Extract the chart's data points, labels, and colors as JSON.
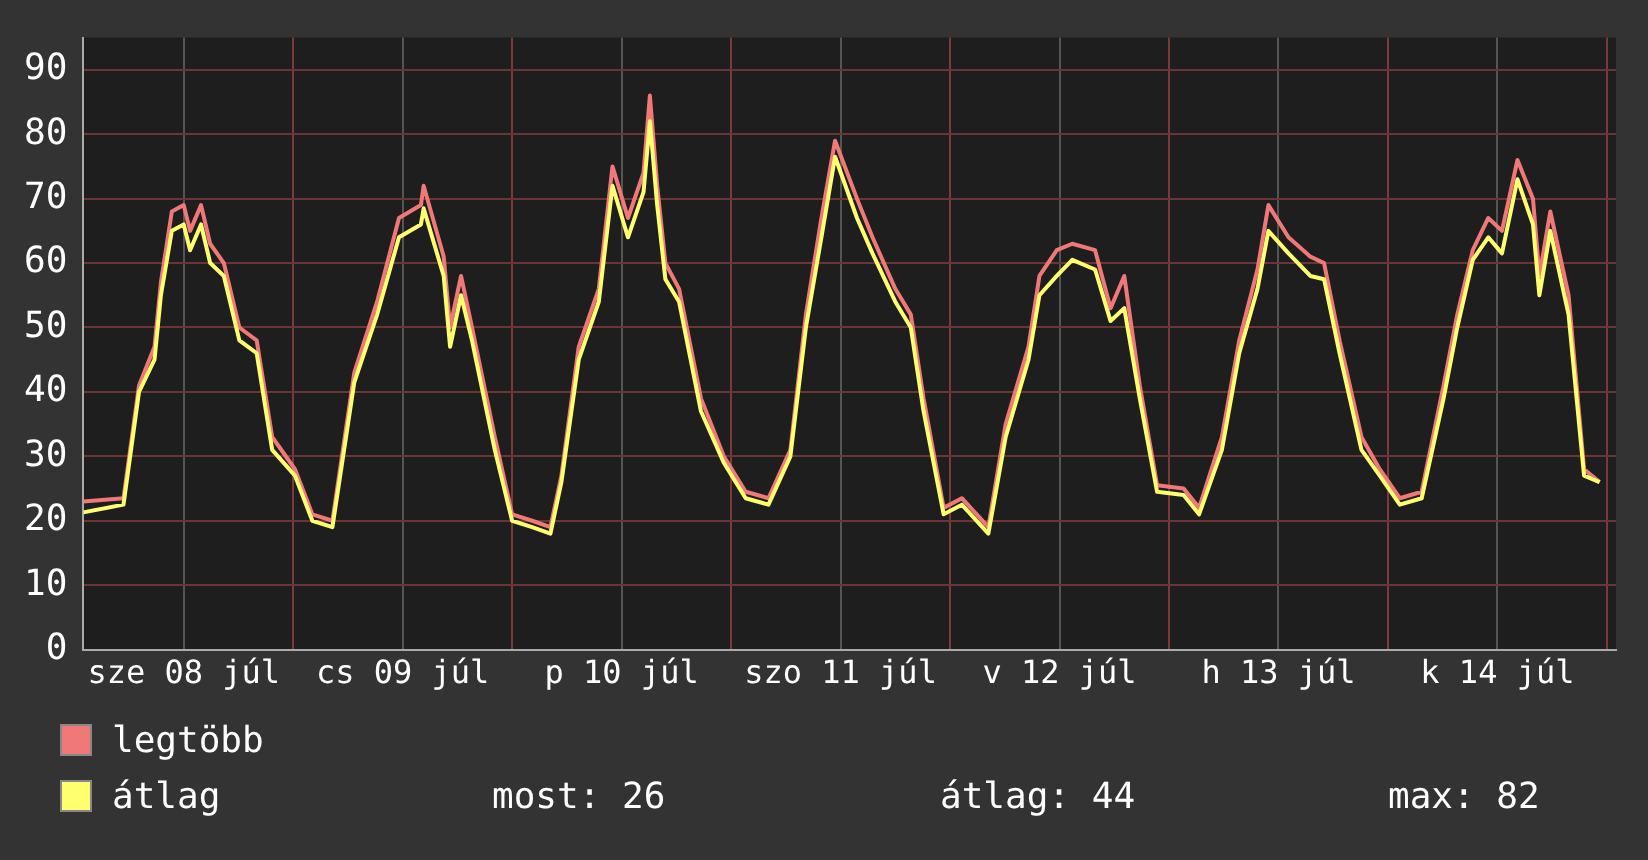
{
  "chart_data": {
    "type": "line",
    "x": [
      "--07-08T01:00",
      "--07-08T05:24",
      "--07-08T07:06",
      "--07-08T08:48",
      "--07-08T09:30",
      "--07-08T10:42",
      "--07-08T12:00",
      "--07-08T12:42",
      "--07-08T13:54",
      "--07-08T14:54",
      "--07-08T16:24",
      "--07-08T18:06",
      "--07-08T20:00",
      "--07-08T21:42",
      "--07-09T00:12",
      "--07-09T02:06",
      "--07-09T04:18",
      "--07-09T06:42",
      "--07-09T09:12",
      "--07-09T11:36",
      "--07-09T14:00",
      "--07-09T14:18",
      "--07-09T16:30",
      "--07-09T17:12",
      "--07-09T18:24",
      "--07-09T19:36",
      "--07-09T22:06",
      "--07-10T00:00",
      "--07-10T02:12",
      "--07-10T04:12",
      "--07-10T05:24",
      "--07-10T07:18",
      "--07-10T09:30",
      "--07-10T11:00",
      "--07-10T12:42",
      "--07-10T14:24",
      "--07-10T15:06",
      "--07-10T15:54",
      "--07-10T16:48",
      "--07-10T18:18",
      "--07-10T20:42",
      "--07-10T23:12",
      "--07-11T01:36",
      "--07-11T04:06",
      "--07-11T06:30",
      "--07-11T08:12",
      "--07-11T09:54",
      "--07-11T11:24",
      "--07-11T13:48",
      "--07-11T15:30",
      "--07-11T18:00",
      "--07-11T19:42",
      "--07-11T21:06",
      "--07-11T23:18",
      "--07-12T01:18",
      "--07-12T04:12",
      "--07-12T06:06",
      "--07-12T08:36",
      "--07-12T09:48",
      "--07-12T11:42",
      "--07-12T13:24",
      "--07-12T15:54",
      "--07-12T17:36",
      "--07-12T19:06",
      "--07-12T20:48",
      "--07-12T22:42",
      "--07-13T01:36",
      "--07-13T03:18",
      "--07-13T05:48",
      "--07-13T07:42",
      "--07-13T09:42",
      "--07-13T10:54",
      "--07-13T13:06",
      "--07-13T15:30",
      "--07-13T17:00",
      "--07-13T18:42",
      "--07-13T21:06",
      "--07-13T23:06",
      "--07-14T01:18",
      "--07-14T03:42",
      "--07-14T06:06",
      "--07-14T07:36",
      "--07-14T09:18",
      "--07-14T11:00",
      "--07-14T12:30",
      "--07-14T14:12",
      "--07-14T15:54",
      "--07-14T16:36",
      "--07-14T17:48",
      "--07-14T19:48",
      "--07-14T21:30",
      "--07-14T23:12"
    ],
    "series": [
      {
        "name": "legtöbb",
        "color": "#f07878",
        "values": [
          23,
          23.5,
          41,
          47,
          57,
          68,
          69,
          65,
          69,
          63,
          60,
          50,
          48,
          33,
          28,
          21,
          20,
          43,
          54,
          67,
          69,
          72,
          61,
          50,
          58,
          50,
          33,
          21,
          20,
          19,
          27,
          47,
          56,
          75,
          67,
          74,
          86,
          72,
          60,
          56,
          39,
          30,
          24.5,
          23.5,
          31,
          52,
          67,
          79,
          70,
          64,
          56,
          52,
          39,
          22,
          23.5,
          19,
          35,
          47,
          58,
          62,
          63,
          62,
          53,
          58,
          41,
          25.5,
          25,
          22,
          33,
          48,
          59,
          69,
          64,
          61,
          60,
          48,
          33,
          28,
          23.5,
          24.5,
          41,
          52,
          62,
          67,
          65,
          76,
          70,
          58,
          68,
          55,
          28,
          26
        ]
      },
      {
        "name": "átlag",
        "color": "#ffff70",
        "values": [
          21.3,
          22.5,
          40,
          45,
          55,
          65,
          66,
          62,
          66,
          60,
          58,
          48,
          46,
          31,
          27,
          20,
          19,
          41.5,
          52,
          64,
          66,
          68.5,
          58,
          47,
          55,
          48,
          31,
          20,
          19,
          18,
          26,
          45,
          54,
          72,
          64,
          71,
          82,
          69,
          57.5,
          54,
          37,
          29,
          23.5,
          22.5,
          30,
          50,
          64,
          76.5,
          67,
          61.5,
          54,
          50,
          37,
          21,
          22.5,
          18,
          33,
          45,
          55,
          58,
          60.5,
          59,
          51,
          53,
          39,
          24.5,
          24,
          21,
          31,
          46,
          56,
          65,
          61.5,
          58,
          57.5,
          46,
          31,
          27,
          22.5,
          23.5,
          39,
          50,
          60.5,
          64,
          61.5,
          73,
          66,
          55,
          65,
          52,
          27,
          26
        ]
      }
    ],
    "xlim": [
      "--07-08T01:00",
      "--07-15T01:00"
    ],
    "xticks": [
      {
        "value": "--07-08T12:00",
        "label": "sze 08 júl"
      },
      {
        "value": "--07-09T00:00",
        "label": null
      },
      {
        "value": "--07-09T12:00",
        "label": "cs 09 júl"
      },
      {
        "value": "--07-10T00:00",
        "label": null
      },
      {
        "value": "--07-10T12:00",
        "label": "p 10 júl"
      },
      {
        "value": "--07-11T00:00",
        "label": null
      },
      {
        "value": "--07-11T12:00",
        "label": "szo 11 júl"
      },
      {
        "value": "--07-12T00:00",
        "label": null
      },
      {
        "value": "--07-12T12:00",
        "label": "v 12 júl"
      },
      {
        "value": "--07-13T00:00",
        "label": null
      },
      {
        "value": "--07-13T12:00",
        "label": "h 13 júl"
      },
      {
        "value": "--07-14T00:00",
        "label": null
      },
      {
        "value": "--07-14T12:00",
        "label": "k 14 júl"
      },
      {
        "value": "--07-15T00:00",
        "label": null
      }
    ],
    "ylim": [
      0,
      95
    ],
    "yticks": [
      0,
      10,
      20,
      30,
      40,
      50,
      60,
      70,
      80,
      90
    ],
    "grid": true,
    "legend": "bottom",
    "marker": "none",
    "line_style": "solid",
    "annotations": [
      "most: 26",
      "átlag: 44",
      "max: 82"
    ]
  }
}
